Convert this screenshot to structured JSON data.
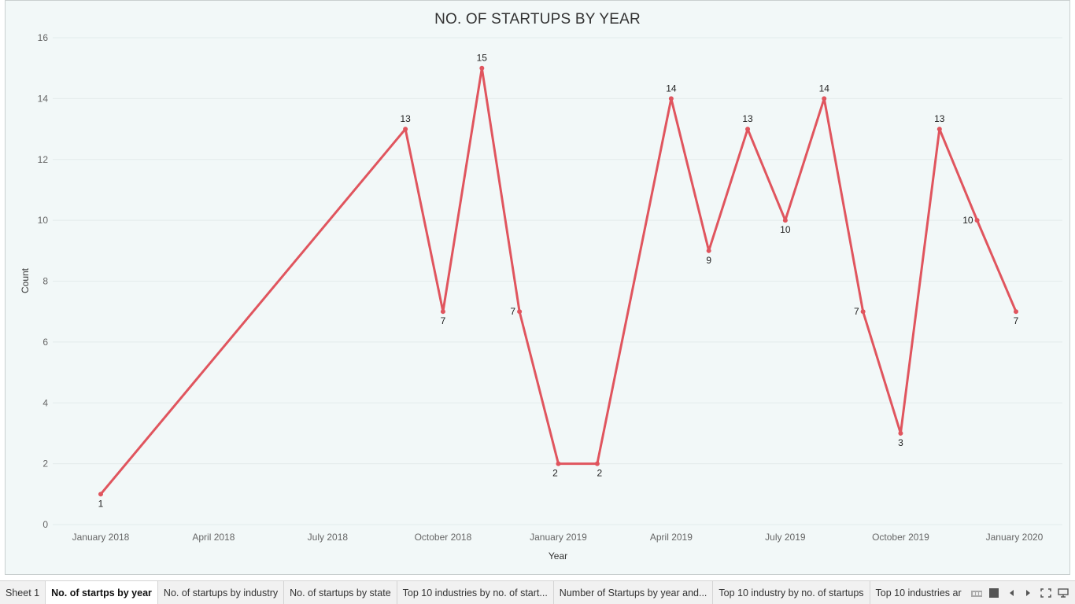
{
  "chart_data": {
    "type": "line",
    "title": "NO. OF STARTUPS BY YEAR",
    "xlabel": "Year",
    "ylabel": "Count",
    "x_tick_labels": [
      "January 2018",
      "April 2018",
      "July 2018",
      "October 2018",
      "January 2019",
      "April 2019",
      "July 2019",
      "October 2019",
      "January 2020"
    ],
    "y_ticks": [
      0,
      2,
      4,
      6,
      8,
      10,
      12,
      14,
      16
    ],
    "ylim": [
      0,
      16
    ],
    "grid": "horizontal",
    "color": "#e0555e",
    "points": [
      {
        "x": "2018-01-01",
        "y": 1
      },
      {
        "x": "2018-09-01",
        "y": 13
      },
      {
        "x": "2018-10-01",
        "y": 7
      },
      {
        "x": "2018-11-01",
        "y": 15
      },
      {
        "x": "2018-12-01",
        "y": 7
      },
      {
        "x": "2019-01-01",
        "y": 2
      },
      {
        "x": "2019-02-01",
        "y": 2
      },
      {
        "x": "2019-04-01",
        "y": 14
      },
      {
        "x": "2019-05-01",
        "y": 9
      },
      {
        "x": "2019-06-01",
        "y": 13
      },
      {
        "x": "2019-07-01",
        "y": 10
      },
      {
        "x": "2019-08-01",
        "y": 14
      },
      {
        "x": "2019-09-01",
        "y": 7
      },
      {
        "x": "2019-10-01",
        "y": 3
      },
      {
        "x": "2019-11-01",
        "y": 13
      },
      {
        "x": "2019-12-01",
        "y": 10
      },
      {
        "x": "2020-01-01",
        "y": 7
      }
    ]
  },
  "tabs": [
    {
      "label": "Sheet 1",
      "active": false
    },
    {
      "label": "No. of startps by year",
      "active": true
    },
    {
      "label": "No. of startups by industry",
      "active": false
    },
    {
      "label": "No. of startups by state",
      "active": false
    },
    {
      "label": "Top 10 industries by no. of start...",
      "active": false
    },
    {
      "label": "Number of Startups by year and...",
      "active": false
    },
    {
      "label": "Top 10 industry by no. of startups",
      "active": false
    },
    {
      "label": "Top 10 industries ar",
      "active": false
    }
  ],
  "tab_controls": [
    "film-strip-icon",
    "grid-view-icon",
    "arrow-left-icon",
    "arrow-right-icon",
    "fullscreen-icon",
    "present-icon"
  ]
}
